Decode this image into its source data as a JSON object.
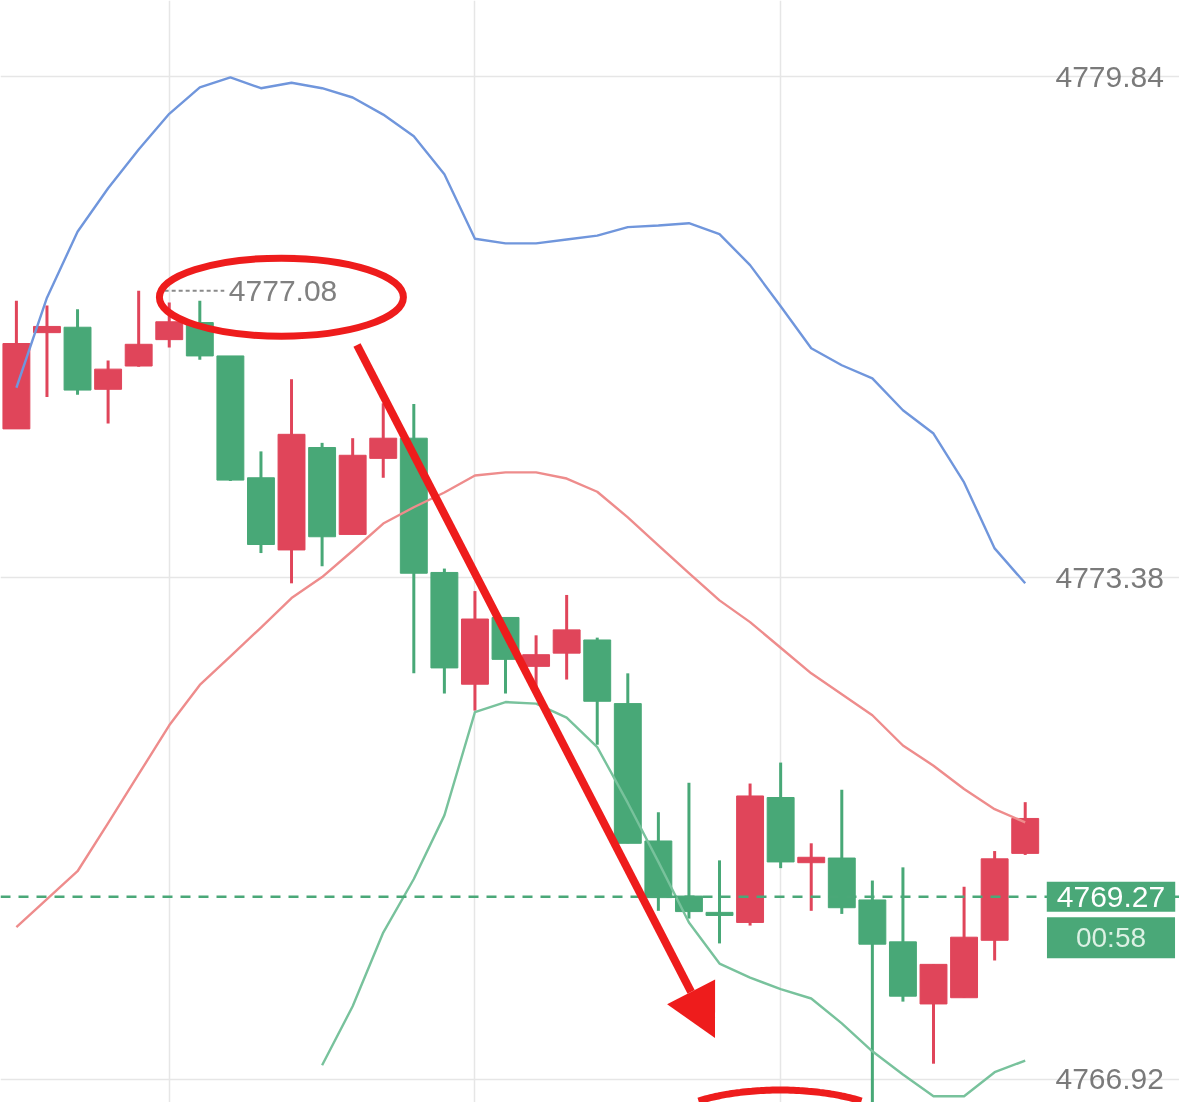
{
  "chart_data": {
    "type": "candlestick",
    "categories": [
      null,
      null,
      null,
      null,
      null,
      null,
      null,
      null,
      null,
      null,
      null,
      null,
      null,
      null,
      null,
      null,
      null,
      null,
      null,
      null,
      null,
      null,
      null,
      null,
      null,
      null,
      null,
      null,
      null,
      null,
      null,
      null,
      null,
      null
    ],
    "ohlc": [
      [
        4775.3,
        4776.95,
        4775.3,
        4776.4
      ],
      [
        4776.54,
        4776.89,
        4775.71,
        4776.62
      ],
      [
        4776.61,
        4776.84,
        4775.74,
        4775.8
      ],
      [
        4775.81,
        4776.18,
        4775.37,
        4776.07
      ],
      [
        4776.11,
        4777.08,
        4776.1,
        4776.39
      ],
      [
        4776.45,
        4776.93,
        4776.35,
        4776.68
      ],
      [
        4776.67,
        4776.95,
        4776.19,
        4776.24
      ],
      [
        4776.24,
        4776.24,
        4774.63,
        4774.64
      ],
      [
        4774.67,
        4775.01,
        4773.7,
        4773.81
      ],
      [
        4773.74,
        4775.94,
        4773.31,
        4775.23
      ],
      [
        4775.06,
        4775.12,
        4773.53,
        4773.91
      ],
      [
        4773.94,
        4775.18,
        4773.94,
        4774.96
      ],
      [
        4774.92,
        4775.63,
        4774.67,
        4775.18
      ],
      [
        4775.18,
        4775.62,
        4772.15,
        4773.44
      ],
      [
        4773.45,
        4773.5,
        4771.89,
        4772.22
      ],
      [
        4772.01,
        4773.21,
        4771.67,
        4772.85
      ],
      [
        4772.87,
        4772.87,
        4771.89,
        4772.33
      ],
      [
        4772.24,
        4772.64,
        4771.97,
        4772.39
      ],
      [
        4772.41,
        4773.16,
        4772.07,
        4772.71
      ],
      [
        4772.58,
        4772.61,
        4771.23,
        4771.79
      ],
      [
        4771.76,
        4772.15,
        4769.96,
        4769.96
      ],
      [
        4769.99,
        4770.36,
        4769.09,
        4769.26
      ],
      [
        4769.28,
        4770.74,
        4768.99,
        4769.08
      ],
      [
        4769.07,
        4769.74,
        4768.67,
        4769.03
      ],
      [
        4768.94,
        4770.73,
        4768.9,
        4770.57
      ],
      [
        4770.55,
        4771.0,
        4769.64,
        4769.72
      ],
      [
        4769.71,
        4769.96,
        4769.09,
        4769.78
      ],
      [
        4769.77,
        4770.65,
        4769.05,
        4769.13
      ],
      [
        4769.23,
        4769.48,
        4766.62,
        4768.66
      ],
      [
        4768.69,
        4769.65,
        4767.92,
        4767.99
      ],
      [
        4767.89,
        4768.4,
        4767.12,
        4768.4
      ],
      [
        4767.97,
        4769.4,
        4767.97,
        4768.75
      ],
      [
        4768.71,
        4769.86,
        4768.45,
        4769.76
      ],
      [
        4769.83,
        4770.49,
        4769.81,
        4770.28
      ]
    ],
    "colors": [
      "#e0455a",
      "#e0455a",
      "#48a877",
      "#e0455a",
      "#e0455a",
      "#e0455a",
      "#48a877",
      "#48a877",
      "#48a877",
      "#e0455a",
      "#48a877",
      "#e0455a",
      "#e0455a",
      "#48a877",
      "#48a877",
      "#e0455a",
      "#48a877",
      "#e0455a",
      "#e0455a",
      "#48a877",
      "#48a877",
      "#48a877",
      "#48a877",
      "#48a877",
      "#e0455a",
      "#48a877",
      "#e0455a",
      "#48a877",
      "#48a877",
      "#48a877",
      "#e0455a",
      "#e0455a",
      "#e0455a",
      "#e0455a"
    ],
    "series": [
      {
        "type": "line",
        "color": "#7096dc",
        "values": [
          4775.83,
          4776.99,
          4777.84,
          4778.4,
          4778.9,
          4779.36,
          4779.7,
          4779.83,
          4779.69,
          4779.76,
          4779.69,
          4779.57,
          4779.35,
          4779.07,
          4778.58,
          4777.75,
          4777.69,
          4777.69,
          4777.74,
          4777.79,
          4777.9,
          4777.92,
          4777.95,
          4777.81,
          4777.41,
          4776.88,
          4776.34,
          4776.12,
          4775.95,
          4775.54,
          4775.24,
          4774.61,
          4773.76,
          4773.31
        ]
      },
      {
        "type": "line",
        "color": "#ee8c8c",
        "values": [
          4768.88,
          4769.24,
          4769.6,
          4770.22,
          4770.85,
          4771.48,
          4772.0,
          4772.37,
          4772.74,
          4773.12,
          4773.39,
          4773.73,
          4774.08,
          4774.29,
          4774.48,
          4774.7,
          4774.74,
          4774.74,
          4774.66,
          4774.49,
          4774.16,
          4773.8,
          4773.44,
          4773.09,
          4772.81,
          4772.48,
          4772.15,
          4771.88,
          4771.61,
          4771.22,
          4770.96,
          4770.66,
          4770.4,
          4770.23
        ]
      },
      {
        "type": "line",
        "color": "#78c29c",
        "values": [
          null,
          null,
          null,
          null,
          null,
          null,
          null,
          null,
          null,
          null,
          4767.1,
          4767.86,
          4768.81,
          4769.5,
          4770.32,
          4771.65,
          4771.78,
          4771.76,
          4771.58,
          4771.2,
          4770.48,
          4769.72,
          4768.94,
          4768.41,
          4768.23,
          4768.08,
          4767.96,
          4767.64,
          4767.28,
          4766.98,
          4766.7,
          4766.7,
          4767.01,
          4767.16
        ]
      }
    ],
    "ylim": [
      4766.62,
      4780.82
    ],
    "yticks": [
      4779.84,
      4773.38,
      4766.92
    ],
    "tick_labels": "y",
    "grid": true,
    "ref_lines": [
      {
        "axis": "y",
        "value": 4769.27,
        "label": "4769.27",
        "color": "#4aa878",
        "line_style": "dashed"
      }
    ],
    "annotations": [
      "4777.08",
      "00:58"
    ]
  }
}
